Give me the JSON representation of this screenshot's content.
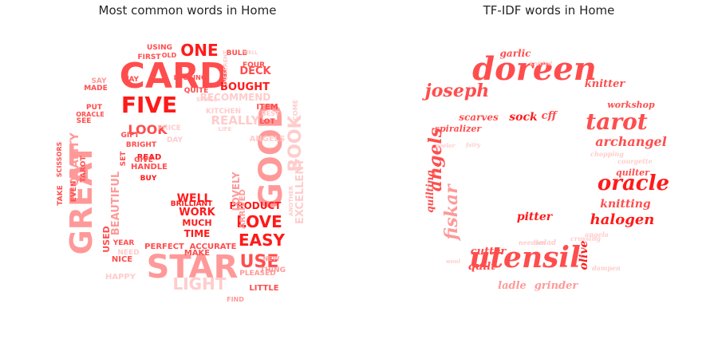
{
  "colors": {
    "strong": "#ff1a1a",
    "medium": "#ff4d4d",
    "light": "#ff9999",
    "pale": "#ffcccc",
    "title": "#262626"
  },
  "left_panel": {
    "title": "Most common words in Home",
    "words": [
      {
        "text": "CARD",
        "tone": "medium"
      },
      {
        "text": "STAR",
        "tone": "light"
      },
      {
        "text": "GREAT",
        "tone": "light"
      },
      {
        "text": "GOOD",
        "tone": "light"
      },
      {
        "text": "FIVE",
        "tone": "strong"
      },
      {
        "text": "BOOK",
        "tone": "pale"
      },
      {
        "text": "LOVE",
        "tone": "strong"
      },
      {
        "text": "EASY",
        "tone": "strong"
      },
      {
        "text": "USE",
        "tone": "medium"
      },
      {
        "text": "LIGHT",
        "tone": "pale"
      },
      {
        "text": "ONE",
        "tone": "strong"
      },
      {
        "text": "LOOK",
        "tone": "medium"
      },
      {
        "text": "QUALITY",
        "tone": "light"
      },
      {
        "text": "BEAUTIFUL",
        "tone": "light"
      },
      {
        "text": "PRODUCT",
        "tone": "strong"
      },
      {
        "text": "BOUGHT",
        "tone": "strong"
      },
      {
        "text": "WORK",
        "tone": "strong"
      },
      {
        "text": "WELL",
        "tone": "strong"
      },
      {
        "text": "TIME",
        "tone": "strong"
      },
      {
        "text": "MUCH",
        "tone": "strong"
      },
      {
        "text": "BRILLIANT",
        "tone": "strong"
      },
      {
        "text": "EXCELLENT",
        "tone": "pale"
      },
      {
        "text": "REALLY",
        "tone": "pale"
      },
      {
        "text": "LOVELY",
        "tone": "light"
      },
      {
        "text": "RECOMMEND",
        "tone": "pale"
      },
      {
        "text": "DECK",
        "tone": "medium"
      },
      {
        "text": "USED",
        "tone": "medium"
      },
      {
        "text": "MAKE",
        "tone": "medium"
      },
      {
        "text": "PERFECT",
        "tone": "medium"
      },
      {
        "text": "ACCURATE",
        "tone": "medium"
      },
      {
        "text": "PLEASED",
        "tone": "light"
      },
      {
        "text": "LITTLE",
        "tone": "medium"
      },
      {
        "text": "NICE",
        "tone": "medium"
      },
      {
        "text": "HAPPY",
        "tone": "pale"
      },
      {
        "text": "NEW",
        "tone": "light"
      },
      {
        "text": "THING",
        "tone": "light"
      },
      {
        "text": "FIND",
        "tone": "light"
      },
      {
        "text": "ARRIVED",
        "tone": "light"
      },
      {
        "text": "BULB",
        "tone": "medium"
      },
      {
        "text": "FOUR",
        "tone": "medium"
      },
      {
        "text": "USING",
        "tone": "medium"
      },
      {
        "text": "FIRST",
        "tone": "medium"
      },
      {
        "text": "OLD",
        "tone": "medium"
      },
      {
        "text": "SAY",
        "tone": "light"
      },
      {
        "text": "WAY",
        "tone": "medium"
      },
      {
        "text": "MADE",
        "tone": "medium"
      },
      {
        "text": "PUT",
        "tone": "medium"
      },
      {
        "text": "SEE",
        "tone": "medium"
      },
      {
        "text": "GIFT",
        "tone": "medium"
      },
      {
        "text": "BRIGHT",
        "tone": "medium"
      },
      {
        "text": "READ",
        "tone": "strong"
      },
      {
        "text": "SET",
        "tone": "medium"
      },
      {
        "text": "BUY",
        "tone": "strong"
      },
      {
        "text": "HANDLE",
        "tone": "medium"
      },
      {
        "text": "GIVE",
        "tone": "medium"
      },
      {
        "text": "EVEN",
        "tone": "medium"
      },
      {
        "text": "TAROT",
        "tone": "medium"
      },
      {
        "text": "SCISSORS",
        "tone": "medium"
      },
      {
        "text": "TAKE",
        "tone": "medium"
      },
      {
        "text": "YEAR",
        "tone": "medium"
      },
      {
        "text": "NEED",
        "tone": "pale"
      },
      {
        "text": "ITEM",
        "tone": "medium"
      },
      {
        "text": "COME",
        "tone": "pale"
      },
      {
        "text": "LOT",
        "tone": "medium"
      },
      {
        "text": "ANGELS",
        "tone": "pale"
      },
      {
        "text": "PRICE",
        "tone": "pale"
      },
      {
        "text": "DAY",
        "tone": "pale"
      },
      {
        "text": "KITCHEN",
        "tone": "pale"
      },
      {
        "text": "ANOTHER",
        "tone": "pale"
      },
      {
        "text": "BEST",
        "tone": "pale"
      },
      {
        "text": "ORACLE",
        "tone": "medium"
      },
      {
        "text": "LOOKING",
        "tone": "medium"
      },
      {
        "text": "QUITE",
        "tone": "medium"
      },
      {
        "text": "SMALL",
        "tone": "pale"
      },
      {
        "text": "DIFFERENT",
        "tone": "pale"
      },
      {
        "text": "WELL",
        "tone": "pale"
      },
      {
        "text": "LIFE",
        "tone": "pale"
      }
    ]
  },
  "right_panel": {
    "title": "TF-IDF words in Home",
    "words": [
      {
        "text": "doreen",
        "tone": "medium"
      },
      {
        "text": "utensil",
        "tone": "medium"
      },
      {
        "text": "tarot",
        "tone": "medium"
      },
      {
        "text": "oracle",
        "tone": "strong"
      },
      {
        "text": "angels",
        "tone": "medium"
      },
      {
        "text": "fiskar",
        "tone": "light"
      },
      {
        "text": "joseph",
        "tone": "medium"
      },
      {
        "text": "archangel",
        "tone": "medium"
      },
      {
        "text": "halogen",
        "tone": "strong"
      },
      {
        "text": "knitting",
        "tone": "medium"
      },
      {
        "text": "quilting",
        "tone": "medium"
      },
      {
        "text": "scarves",
        "tone": "medium"
      },
      {
        "text": "sock",
        "tone": "strong"
      },
      {
        "text": "quilter",
        "tone": "medium"
      },
      {
        "text": "workshop",
        "tone": "medium"
      },
      {
        "text": "knitter",
        "tone": "medium"
      },
      {
        "text": "garlic",
        "tone": "medium"
      },
      {
        "text": "pitter",
        "tone": "strong"
      },
      {
        "text": "cutter",
        "tone": "medium"
      },
      {
        "text": "quilt",
        "tone": "medium"
      },
      {
        "text": "ladle",
        "tone": "light"
      },
      {
        "text": "grinder",
        "tone": "light"
      },
      {
        "text": "olive",
        "tone": "strong"
      },
      {
        "text": "spiralizer",
        "tone": "medium"
      },
      {
        "text": "cff",
        "tone": "medium"
      },
      {
        "text": "crossing",
        "tone": "pale"
      },
      {
        "text": "courgette",
        "tone": "pale"
      },
      {
        "text": "salad",
        "tone": "pale"
      },
      {
        "text": "angela",
        "tone": "pale"
      },
      {
        "text": "knitted",
        "tone": "pale"
      },
      {
        "text": "chopping",
        "tone": "pale"
      },
      {
        "text": "dampen",
        "tone": "pale"
      },
      {
        "text": "needles",
        "tone": "pale"
      },
      {
        "text": "peeler",
        "tone": "pale"
      },
      {
        "text": "fairy",
        "tone": "pale"
      },
      {
        "text": "wool",
        "tone": "pale"
      }
    ]
  }
}
